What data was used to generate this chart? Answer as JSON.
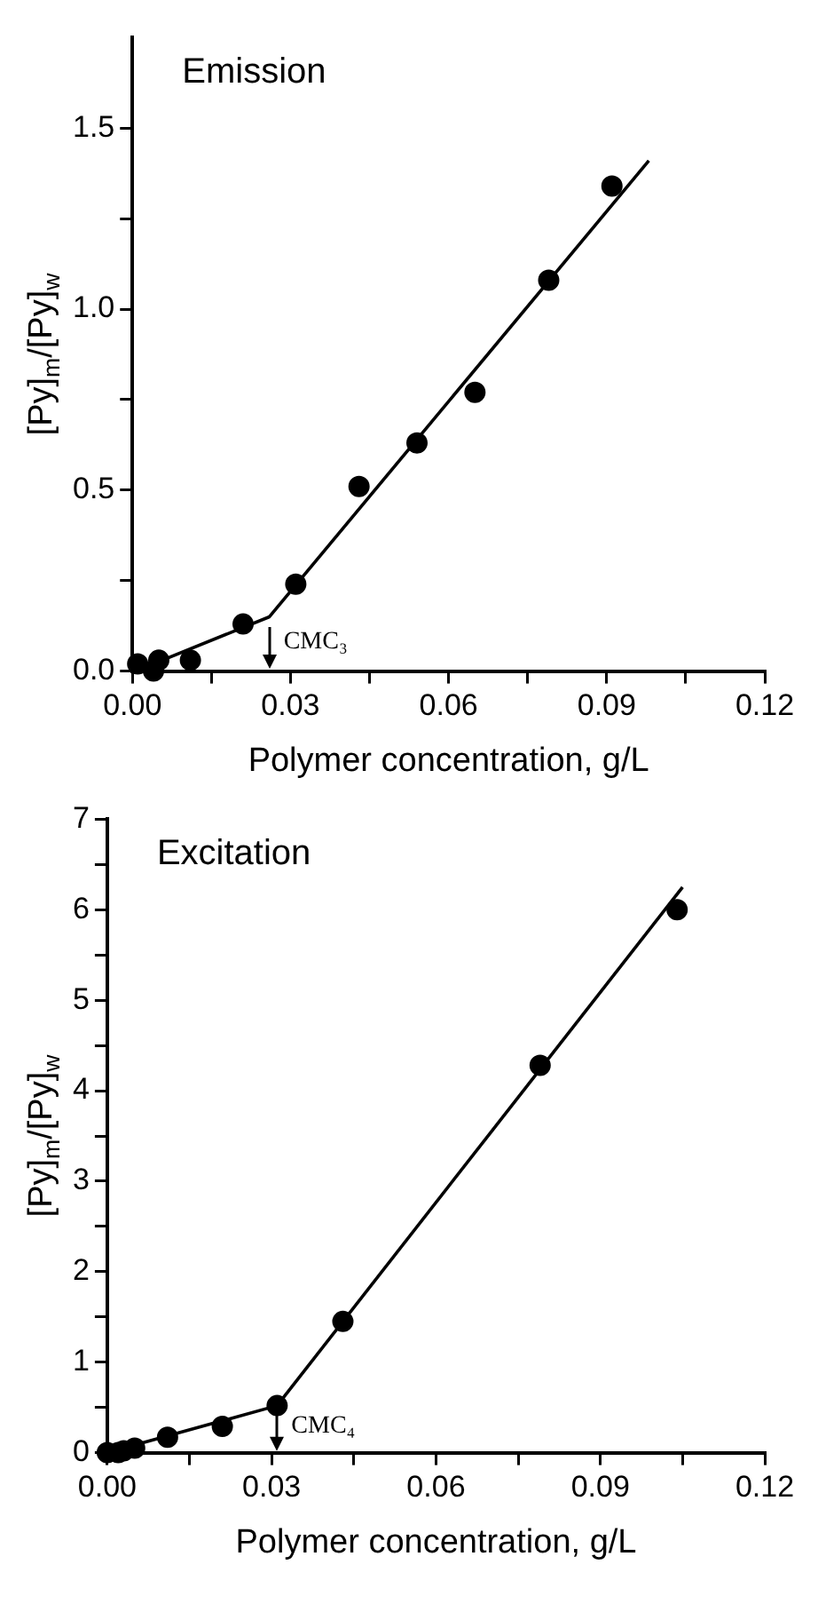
{
  "chart_data": [
    {
      "type": "scatter",
      "title": "Emission",
      "xlabel": "Polymer concentration, g/L",
      "ylabel": "[Py]$_{m}$/[Py]$_{w}$",
      "xlim": [
        0,
        0.12
      ],
      "ylim": [
        0,
        1.75
      ],
      "xticks": [
        {
          "value": 0,
          "label": "0.00"
        },
        {
          "value": 0.015,
          "label": null
        },
        {
          "value": 0.03,
          "label": "0.03"
        },
        {
          "value": 0.045,
          "label": null
        },
        {
          "value": 0.06,
          "label": "0.06"
        },
        {
          "value": 0.075,
          "label": null
        },
        {
          "value": 0.09,
          "label": "0.09"
        },
        {
          "value": 0.105,
          "label": null
        },
        {
          "value": 0.12,
          "label": "0.12"
        }
      ],
      "yticks": [
        {
          "value": 0,
          "label": "0.0"
        },
        {
          "value": 0.25,
          "label": null
        },
        {
          "value": 0.5,
          "label": "0.5"
        },
        {
          "value": 0.75,
          "label": null
        },
        {
          "value": 1,
          "label": "1.0"
        },
        {
          "value": 1.25,
          "label": null
        },
        {
          "value": 1.5,
          "label": "1.5"
        }
      ],
      "grid": false,
      "legend": false,
      "series": [
        {
          "type": "scatter",
          "marker": "circle",
          "color": "#000000",
          "x": [
            0.001,
            0.004,
            0.005,
            0.011,
            0.021,
            0.031,
            0.043,
            0.054,
            0.065,
            0.079,
            0.091
          ],
          "values": [
            0.02,
            0,
            0.03,
            0.03,
            0.13,
            0.24,
            0.51,
            0.63,
            0.77,
            1.08,
            1.34
          ]
        },
        {
          "type": "line",
          "marker": "none",
          "color": "#000000",
          "x": [
            0.004,
            0.026,
            0.098
          ],
          "values": [
            0.02,
            0.15,
            1.41
          ]
        }
      ],
      "annotations": [
        {
          "text": "CMC₃",
          "x": 0.026,
          "y": 0.12
        }
      ]
    },
    {
      "type": "scatter",
      "title": "Excitation",
      "xlabel": "Polymer concentration, g/L",
      "ylabel": "[Py]$_{m}$/[Py]$_{w}$",
      "xlim": [
        0,
        0.12
      ],
      "ylim": [
        0,
        7
      ],
      "xticks": [
        {
          "value": 0,
          "label": "0.00"
        },
        {
          "value": 0.015,
          "label": null
        },
        {
          "value": 0.03,
          "label": "0.03"
        },
        {
          "value": 0.045,
          "label": null
        },
        {
          "value": 0.06,
          "label": "0.06"
        },
        {
          "value": 0.075,
          "label": null
        },
        {
          "value": 0.09,
          "label": "0.09"
        },
        {
          "value": 0.105,
          "label": null
        },
        {
          "value": 0.12,
          "label": "0.12"
        }
      ],
      "yticks": [
        0,
        {
          "value": 0.5,
          "label": null
        },
        1,
        {
          "value": 1.5,
          "label": null
        },
        2,
        {
          "value": 2.5,
          "label": null
        },
        3,
        {
          "value": 3.5,
          "label": null
        },
        4,
        {
          "value": 4.5,
          "label": null
        },
        5,
        {
          "value": 5.5,
          "label": null
        },
        6,
        {
          "value": 6.5,
          "label": null
        },
        7
      ],
      "grid": false,
      "legend": false,
      "series": [
        {
          "type": "scatter",
          "marker": "circle",
          "color": "#000000",
          "x": [
            0,
            0.002,
            0.003,
            0.005,
            0.011,
            0.021,
            0.031,
            0.043,
            0.079,
            0.104
          ],
          "values": [
            0,
            0,
            0.02,
            0.05,
            0.17,
            0.29,
            0.52,
            1.45,
            4.28,
            6.0
          ]
        },
        {
          "type": "line",
          "marker": "none",
          "color": "#000000",
          "x": [
            0,
            0.031,
            0.105
          ],
          "values": [
            0,
            0.52,
            6.25
          ]
        }
      ],
      "annotations": [
        {
          "text": "CMC₄",
          "x": 0.031,
          "y": 0.45
        }
      ]
    }
  ]
}
